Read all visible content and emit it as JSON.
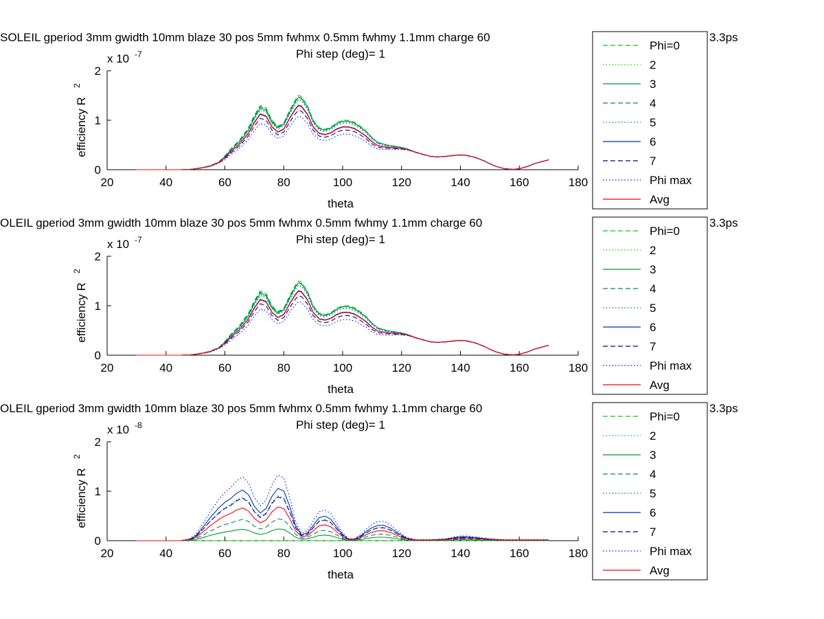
{
  "figure": {
    "legend_labels": [
      "Phi=0",
      "2",
      "3",
      "4",
      "5",
      "6",
      "7",
      "Phi max",
      "Avg"
    ],
    "series_styles": [
      {
        "color": "#00cc00",
        "dash": "dashed"
      },
      {
        "color": "#00cc00",
        "dash": "dotted"
      },
      {
        "color": "#009933",
        "dash": "solid"
      },
      {
        "color": "#008080",
        "dash": "dashed"
      },
      {
        "color": "#0066aa",
        "dash": "dotted"
      },
      {
        "color": "#0033aa",
        "dash": "solid"
      },
      {
        "color": "#000088",
        "dash": "dashed"
      },
      {
        "color": "#0000ff",
        "dash": "dotted"
      },
      {
        "color": "#ff0000",
        "dash": "solid"
      }
    ]
  },
  "chart_data": [
    {
      "type": "line",
      "title_line1": "SOLEIL gperiod 3mm gwidth 10mm blaze 30 pos 5mm fwhmx 0.5mm fwhmy 1.1mm charge 60",
      "title_line1_tail": "3.3ps",
      "title_line2": "Phi step (deg)= 1",
      "xlabel": "theta",
      "ylabel": "efficiency R",
      "ylabel_sup": "2",
      "multiplier_base": "x 10",
      "multiplier_exp": "-7",
      "xlim": [
        20,
        180
      ],
      "ylim": [
        0,
        2
      ],
      "xticks": [
        "20",
        "40",
        "60",
        "80",
        "100",
        "120",
        "140",
        "160",
        "180"
      ],
      "yticks": [
        "0",
        "1",
        "2"
      ],
      "x": [
        30,
        35,
        40,
        45,
        48,
        50,
        52,
        55,
        58,
        60,
        62,
        65,
        68,
        70,
        72,
        74,
        76,
        78,
        80,
        82,
        84,
        85,
        86,
        88,
        90,
        92,
        94,
        96,
        98,
        100,
        102,
        104,
        106,
        108,
        110,
        112,
        115,
        118,
        120,
        122,
        125,
        128,
        130,
        132,
        135,
        138,
        140,
        142,
        145,
        148,
        150,
        152,
        155,
        158,
        160,
        163,
        165,
        168,
        170
      ],
      "series": [
        {
          "values": [
            0,
            0,
            0,
            0,
            0.005,
            0.02,
            0.04,
            0.08,
            0.16,
            0.28,
            0.42,
            0.6,
            0.85,
            1.1,
            1.3,
            1.25,
            1.0,
            0.88,
            0.95,
            1.2,
            1.42,
            1.5,
            1.48,
            1.3,
            1.0,
            0.85,
            0.82,
            0.86,
            0.95,
            1.0,
            1.0,
            0.96,
            0.88,
            0.78,
            0.65,
            0.55,
            0.5,
            0.47,
            0.45,
            0.42,
            0.35,
            0.3,
            0.27,
            0.26,
            0.27,
            0.29,
            0.3,
            0.29,
            0.25,
            0.18,
            0.12,
            0.07,
            0.02,
            0.005,
            0.02,
            0.07,
            0.12,
            0.17,
            0.2
          ]
        },
        {
          "values": [
            0,
            0,
            0,
            0,
            0.003,
            0.015,
            0.03,
            0.06,
            0.13,
            0.24,
            0.36,
            0.54,
            0.76,
            1.0,
            1.2,
            1.15,
            0.92,
            0.82,
            0.9,
            1.12,
            1.34,
            1.42,
            1.4,
            1.24,
            0.95,
            0.81,
            0.78,
            0.83,
            0.91,
            0.96,
            0.96,
            0.92,
            0.85,
            0.76,
            0.64,
            0.55,
            0.5,
            0.47,
            0.45,
            0.42,
            0.35,
            0.3,
            0.27,
            0.26,
            0.27,
            0.29,
            0.3,
            0.29,
            0.25,
            0.18,
            0.12,
            0.07,
            0.02,
            0.005,
            0.02,
            0.07,
            0.12,
            0.17,
            0.2
          ]
        },
        {
          "values": [
            0,
            0,
            0,
            0,
            0.004,
            0.018,
            0.036,
            0.07,
            0.15,
            0.26,
            0.39,
            0.57,
            0.8,
            1.05,
            1.25,
            1.2,
            0.96,
            0.85,
            0.92,
            1.16,
            1.38,
            1.46,
            1.44,
            1.27,
            0.98,
            0.83,
            0.8,
            0.84,
            0.93,
            0.98,
            0.98,
            0.94,
            0.86,
            0.77,
            0.64,
            0.55,
            0.5,
            0.47,
            0.45,
            0.42,
            0.35,
            0.3,
            0.27,
            0.26,
            0.27,
            0.29,
            0.3,
            0.29,
            0.25,
            0.18,
            0.12,
            0.07,
            0.02,
            0.005,
            0.02,
            0.07,
            0.12,
            0.17,
            0.2
          ]
        }
      ]
    },
    {
      "type": "line",
      "title_line1": "OLEIL gperiod 3mm gwidth 10mm blaze 30 pos 5mm fwhmx 0.5mm fwhmy 1.1mm charge 60",
      "title_line1_tail": "3.3ps",
      "title_line2": "Phi step (deg)= 1",
      "xlabel": "theta",
      "ylabel": "efficiency R",
      "ylabel_sup": "2",
      "multiplier_base": "x 10",
      "multiplier_exp": "-7",
      "xlim": [
        20,
        180
      ],
      "ylim": [
        0,
        2
      ],
      "xticks": [
        "20",
        "40",
        "60",
        "80",
        "100",
        "120",
        "140",
        "160",
        "180"
      ],
      "yticks": [
        "0",
        "1",
        "2"
      ]
    },
    {
      "type": "line",
      "title_line1": "OLEIL gperiod 3mm gwidth 10mm blaze 30 pos 5mm fwhmx 0.5mm fwhmy 1.1mm charge 60",
      "title_line1_tail": "3.3ps",
      "title_line2": "Phi step (deg)= 1",
      "xlabel": "theta",
      "ylabel": "efficiency R",
      "ylabel_sup": "2",
      "multiplier_base": "x 10",
      "multiplier_exp": "-8",
      "xlim": [
        20,
        180
      ],
      "ylim": [
        0,
        2
      ],
      "xticks": [
        "20",
        "40",
        "60",
        "80",
        "100",
        "120",
        "140",
        "160",
        "180"
      ],
      "yticks": [
        "0",
        "1",
        "2"
      ],
      "x": [
        30,
        35,
        40,
        45,
        48,
        50,
        52,
        55,
        58,
        60,
        62,
        64,
        66,
        68,
        70,
        72,
        74,
        76,
        78,
        80,
        82,
        84,
        86,
        88,
        90,
        92,
        94,
        96,
        98,
        100,
        102,
        104,
        106,
        108,
        110,
        112,
        114,
        116,
        118,
        120,
        122,
        125,
        130,
        135,
        138,
        140,
        142,
        145,
        150,
        155,
        160,
        165,
        170
      ],
      "series": [
        {
          "values": [
            0,
            0,
            0,
            0,
            0.02,
            0.06,
            0.15,
            0.3,
            0.43,
            0.5,
            0.55,
            0.62,
            0.66,
            0.6,
            0.45,
            0.36,
            0.42,
            0.58,
            0.68,
            0.65,
            0.45,
            0.2,
            0.08,
            0.1,
            0.2,
            0.3,
            0.32,
            0.28,
            0.18,
            0.08,
            0.02,
            0.02,
            0.06,
            0.12,
            0.17,
            0.2,
            0.2,
            0.17,
            0.12,
            0.07,
            0.03,
            0.01,
            0.01,
            0.02,
            0.04,
            0.05,
            0.05,
            0.04,
            0.02,
            0.01,
            0.01,
            0.01,
            0.01
          ]
        }
      ],
      "scales": [
        0,
        0,
        0.35,
        0.65,
        1.33,
        1.55,
        1.3,
        1.95,
        1.0
      ]
    }
  ]
}
